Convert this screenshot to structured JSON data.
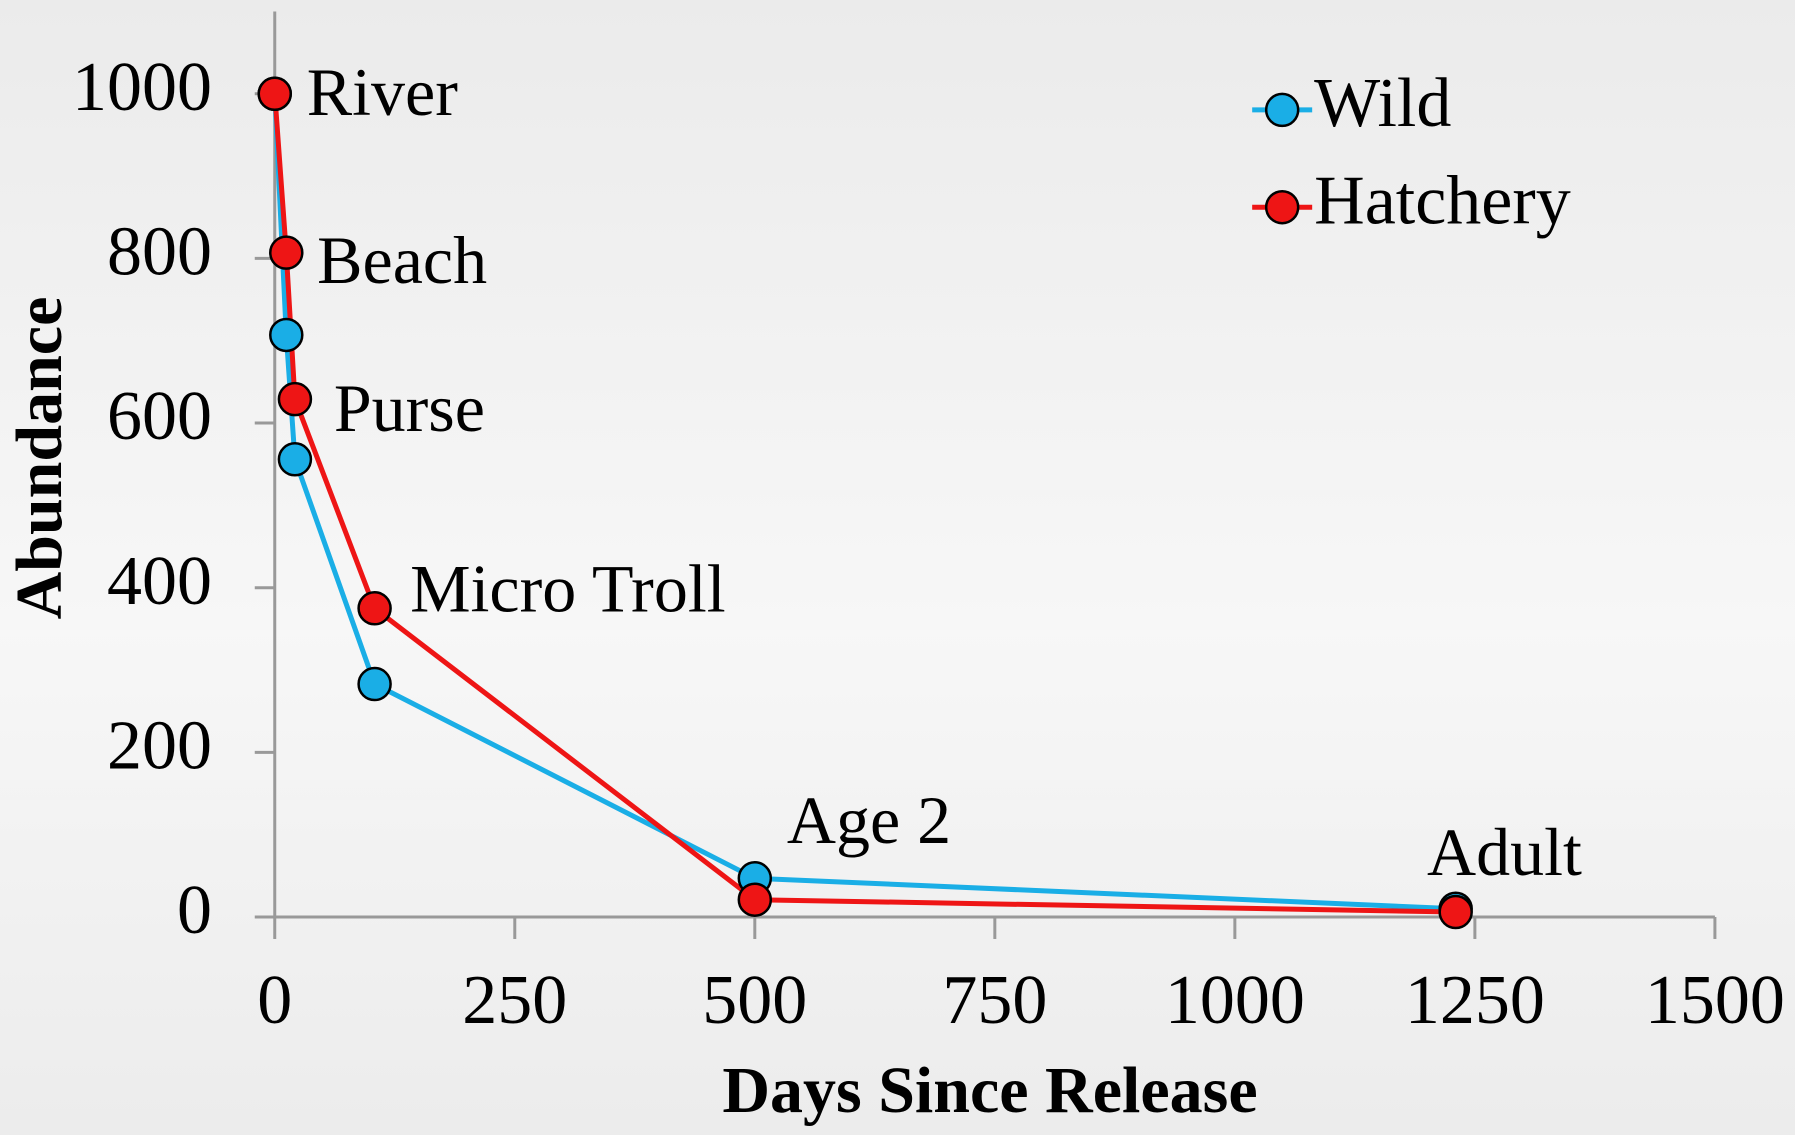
{
  "chart_data": {
    "type": "line",
    "xlabel": "Days Since Release",
    "ylabel": "Abundance",
    "x": [
      0,
      12,
      21,
      104,
      500,
      1230
    ],
    "point_labels": [
      "River",
      "Beach",
      "Purse",
      "Micro Troll",
      "Age 2",
      "Adult"
    ],
    "series": [
      {
        "name": "Wild",
        "color": "#1aaee6",
        "values": [
          1000,
          707,
          556,
          283,
          47,
          10
        ]
      },
      {
        "name": "Hatchery",
        "color": "#ee1515",
        "values": [
          1000,
          807,
          629,
          375,
          21,
          6
        ]
      }
    ],
    "xlim": [
      0,
      1500
    ],
    "xticks": [
      0,
      250,
      500,
      750,
      1000,
      1250,
      1500
    ],
    "ylim": [
      0,
      1100
    ],
    "yticks": [
      0,
      200,
      400,
      600,
      800,
      1000
    ],
    "grid": false,
    "legend": "upper right"
  }
}
